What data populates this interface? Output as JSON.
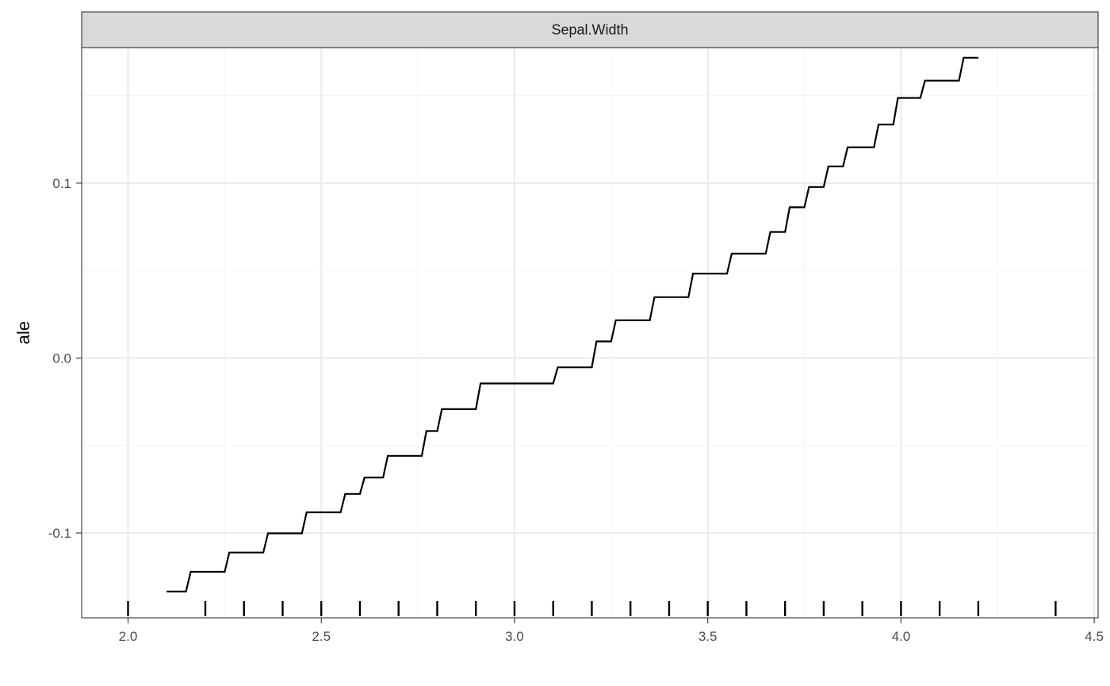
{
  "chart_data": {
    "type": "line",
    "step": true,
    "facet_label": "Sepal.Width",
    "xlabel": "",
    "ylabel": "ale",
    "xlim": [
      1.88,
      4.51
    ],
    "ylim": [
      -0.1485,
      0.1775
    ],
    "x_ticks": [
      2.0,
      2.5,
      3.0,
      3.5,
      4.0,
      4.5
    ],
    "x_tick_labels": [
      "2.0",
      "2.5",
      "3.0",
      "3.5",
      "4.0",
      "4.5"
    ],
    "y_ticks": [
      -0.1,
      0.0,
      0.1
    ],
    "y_tick_labels": [
      "-0.1",
      "0.0",
      "0.1"
    ],
    "grid": true,
    "line_color": "#000000",
    "series": [
      {
        "x": [
          2.1,
          2.15,
          2.25,
          2.35,
          2.45,
          2.55,
          2.6,
          2.66,
          2.76,
          2.8,
          2.9,
          3.1,
          3.2,
          3.25,
          3.35,
          3.45,
          3.55,
          3.65,
          3.7,
          3.75,
          3.8,
          3.85,
          3.93,
          3.98,
          4.05,
          4.15,
          4.2
        ],
        "y": [
          -0.1335,
          -0.1222,
          -0.1112,
          -0.1002,
          -0.0882,
          -0.0777,
          -0.0683,
          -0.0559,
          -0.0417,
          -0.0292,
          -0.0145,
          -0.0053,
          0.0095,
          0.0216,
          0.0348,
          0.0483,
          0.0597,
          0.0721,
          0.0862,
          0.0978,
          0.1096,
          0.1205,
          0.1335,
          0.1487,
          0.1586,
          0.1717,
          0.1717
        ]
      }
    ],
    "rug_x": [
      2.0,
      2.2,
      2.3,
      2.4,
      2.5,
      2.6,
      2.7,
      2.8,
      2.9,
      3.0,
      3.1,
      3.2,
      3.3,
      3.4,
      3.5,
      3.6,
      3.7,
      3.8,
      3.9,
      4.0,
      4.1,
      4.2,
      4.4
    ],
    "colors": {
      "strip_fill": "#d9d9d9",
      "major_grid": "#ebebeb",
      "minor_grid": "#f5f5f5",
      "panel_border": "#333333"
    }
  }
}
